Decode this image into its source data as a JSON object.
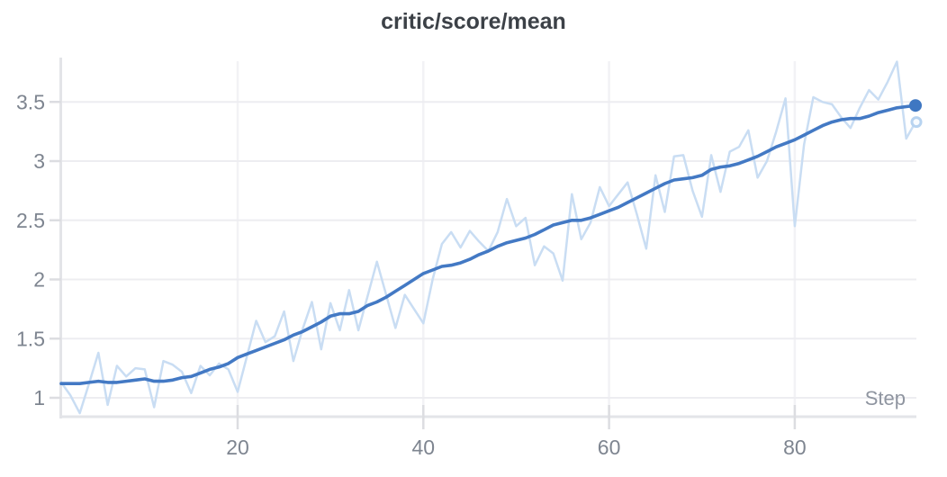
{
  "colors": {
    "smoothed_line": "#4379c4",
    "raw_line": "#c9ddf3",
    "end_dot": "#3f77c2",
    "end_ring": "#b7d3f0",
    "end_ring_fill": "#f7fbff",
    "h_gridline": "#ededf1",
    "v_gridline": "#f2f2f5",
    "axis_line": "#e3e4e8",
    "tick_mark": "#dcdde1",
    "title_text": "#3c4147",
    "tick_label_text": "#7e8590",
    "step_label_text": "#8f95a0",
    "background": "#ffffff"
  },
  "chart_data": {
    "type": "line",
    "title": "critic/score/mean",
    "xlabel": "Step",
    "ylabel": "",
    "legend": "none",
    "grid": "on",
    "xlim": [
      1,
      93
    ],
    "ylim": [
      0.84,
      3.87
    ],
    "x_ticks": [
      20,
      40,
      60,
      80
    ],
    "y_ticks": [
      1,
      1.5,
      2,
      2.5,
      3,
      3.5
    ],
    "x": [
      1,
      2,
      3,
      4,
      5,
      6,
      7,
      8,
      9,
      10,
      11,
      12,
      13,
      14,
      15,
      16,
      17,
      18,
      19,
      20,
      21,
      22,
      23,
      24,
      25,
      26,
      27,
      28,
      29,
      30,
      31,
      32,
      33,
      34,
      35,
      36,
      37,
      38,
      39,
      40,
      41,
      42,
      43,
      44,
      45,
      46,
      47,
      48,
      49,
      50,
      51,
      52,
      53,
      54,
      55,
      56,
      57,
      58,
      59,
      60,
      61,
      62,
      63,
      64,
      65,
      66,
      67,
      68,
      69,
      70,
      71,
      72,
      73,
      74,
      75,
      76,
      77,
      78,
      79,
      80,
      81,
      82,
      83,
      84,
      85,
      86,
      87,
      88,
      89,
      90,
      91,
      92,
      93
    ],
    "series": [
      {
        "name": "raw",
        "values": [
          1.13,
          1.02,
          0.87,
          1.12,
          1.38,
          0.94,
          1.27,
          1.18,
          1.25,
          1.24,
          0.92,
          1.31,
          1.28,
          1.22,
          1.04,
          1.27,
          1.19,
          1.29,
          1.24,
          1.05,
          1.35,
          1.65,
          1.47,
          1.52,
          1.73,
          1.31,
          1.58,
          1.81,
          1.41,
          1.8,
          1.57,
          1.91,
          1.57,
          1.86,
          2.15,
          1.87,
          1.59,
          1.87,
          1.75,
          1.63,
          2.0,
          2.3,
          2.4,
          2.27,
          2.41,
          2.32,
          2.24,
          2.4,
          2.68,
          2.45,
          2.52,
          2.12,
          2.28,
          2.22,
          1.99,
          2.72,
          2.34,
          2.48,
          2.78,
          2.62,
          2.72,
          2.82,
          2.55,
          2.26,
          2.88,
          2.57,
          3.04,
          3.05,
          2.75,
          2.53,
          3.05,
          2.74,
          3.08,
          3.12,
          3.26,
          2.86,
          3.0,
          3.25,
          3.53,
          2.45,
          3.14,
          3.54,
          3.5,
          3.48,
          3.37,
          3.28,
          3.45,
          3.6,
          3.52,
          3.67,
          3.84,
          3.19,
          3.33
        ]
      },
      {
        "name": "smoothed",
        "values": [
          1.12,
          1.12,
          1.12,
          1.13,
          1.14,
          1.13,
          1.13,
          1.14,
          1.15,
          1.16,
          1.14,
          1.14,
          1.15,
          1.17,
          1.18,
          1.21,
          1.24,
          1.26,
          1.29,
          1.34,
          1.37,
          1.4,
          1.43,
          1.46,
          1.49,
          1.53,
          1.56,
          1.6,
          1.64,
          1.69,
          1.71,
          1.71,
          1.73,
          1.78,
          1.81,
          1.85,
          1.9,
          1.95,
          2.0,
          2.05,
          2.08,
          2.11,
          2.12,
          2.14,
          2.17,
          2.21,
          2.24,
          2.28,
          2.31,
          2.33,
          2.35,
          2.38,
          2.42,
          2.46,
          2.48,
          2.5,
          2.5,
          2.52,
          2.55,
          2.58,
          2.61,
          2.65,
          2.69,
          2.73,
          2.77,
          2.81,
          2.84,
          2.85,
          2.86,
          2.88,
          2.93,
          2.95,
          2.96,
          2.98,
          3.01,
          3.04,
          3.08,
          3.12,
          3.15,
          3.18,
          3.22,
          3.26,
          3.3,
          3.33,
          3.35,
          3.36,
          3.36,
          3.38,
          3.41,
          3.43,
          3.45,
          3.46,
          3.47
        ]
      }
    ],
    "end_markers": {
      "smoothed_end": {
        "step": 93,
        "value": 3.47
      },
      "raw_end": {
        "step": 93,
        "value": 3.33
      }
    }
  }
}
